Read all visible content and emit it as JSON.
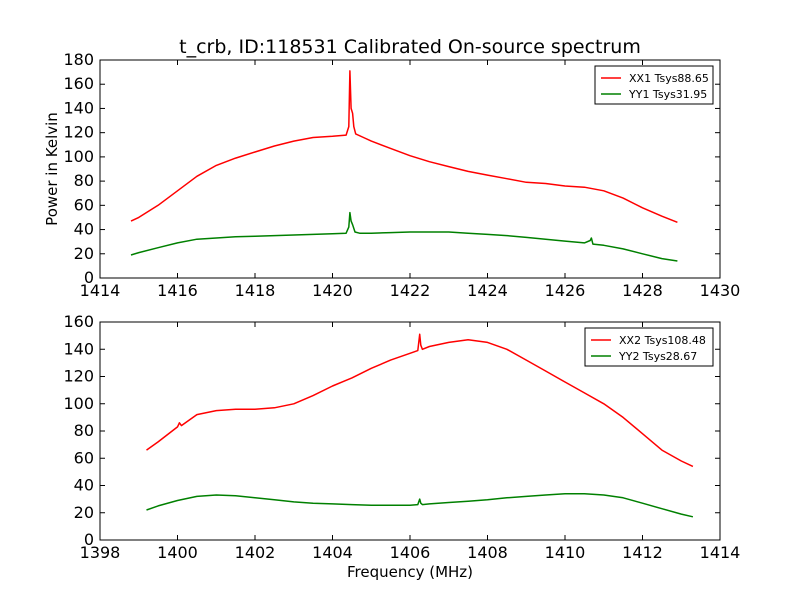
{
  "chart_data": [
    {
      "type": "line",
      "title": "t_crb, ID:118531 Calibrated On-source spectrum",
      "xlabel": "",
      "ylabel": "Power in Kelvin",
      "xlim": [
        1414,
        1430
      ],
      "ylim": [
        0,
        180
      ],
      "xticks": [
        1414,
        1416,
        1418,
        1420,
        1422,
        1424,
        1426,
        1428,
        1430
      ],
      "yticks": [
        0,
        20,
        40,
        60,
        80,
        100,
        120,
        140,
        160,
        180
      ],
      "legend_position": "upper right",
      "series": [
        {
          "name": "XX1 Tsys88.65",
          "color": "#ff0000",
          "x": [
            1414.8,
            1415.0,
            1415.5,
            1416.0,
            1416.5,
            1417.0,
            1417.5,
            1418.0,
            1418.5,
            1419.0,
            1419.5,
            1420.0,
            1420.35,
            1420.42,
            1420.45,
            1420.48,
            1420.52,
            1420.55,
            1420.6,
            1420.8,
            1421.0,
            1421.5,
            1422.0,
            1422.5,
            1423.0,
            1423.5,
            1424.0,
            1424.5,
            1425.0,
            1425.5,
            1426.0,
            1426.5,
            1427.0,
            1427.5,
            1428.0,
            1428.5,
            1428.9
          ],
          "y": [
            47,
            50,
            60,
            72,
            84,
            93,
            99,
            104,
            109,
            113,
            116,
            117,
            118,
            125,
            171,
            140,
            136,
            125,
            119,
            116,
            113,
            107,
            101,
            96,
            92,
            88,
            85,
            82,
            79,
            78,
            76,
            75,
            72,
            66,
            58,
            51,
            46
          ]
        },
        {
          "name": "YY1 Tsys31.95",
          "color": "#008000",
          "x": [
            1414.8,
            1415.0,
            1415.5,
            1416.0,
            1416.5,
            1417.0,
            1417.5,
            1418.0,
            1418.5,
            1419.0,
            1419.5,
            1420.0,
            1420.35,
            1420.42,
            1420.45,
            1420.48,
            1420.52,
            1420.58,
            1420.7,
            1421.0,
            1421.5,
            1422.0,
            1422.5,
            1423.0,
            1423.5,
            1424.0,
            1424.5,
            1425.0,
            1425.5,
            1426.0,
            1426.5,
            1426.65,
            1426.68,
            1426.72,
            1427.0,
            1427.5,
            1428.0,
            1428.5,
            1428.9
          ],
          "y": [
            19,
            21,
            25,
            29,
            32,
            33,
            34,
            34.5,
            35,
            35.5,
            36,
            36.5,
            37,
            42,
            54,
            47,
            44,
            38,
            37,
            37,
            37.5,
            38,
            38,
            38,
            37,
            36,
            35,
            33.5,
            32,
            30.5,
            29,
            31,
            33,
            28,
            27,
            24,
            20,
            16,
            14
          ]
        }
      ]
    },
    {
      "type": "line",
      "title": "",
      "xlabel": "Frequency (MHz)",
      "ylabel": "",
      "xlim": [
        1398,
        1414
      ],
      "ylim": [
        0,
        160
      ],
      "xticks": [
        1398,
        1400,
        1402,
        1404,
        1406,
        1408,
        1410,
        1412,
        1414
      ],
      "yticks": [
        0,
        20,
        40,
        60,
        80,
        100,
        120,
        140,
        160
      ],
      "legend_position": "upper right",
      "series": [
        {
          "name": "XX2 Tsys108.48",
          "color": "#ff0000",
          "x": [
            1399.2,
            1399.5,
            1400.0,
            1400.05,
            1400.1,
            1400.5,
            1401.0,
            1401.5,
            1402.0,
            1402.5,
            1403.0,
            1403.5,
            1404.0,
            1404.5,
            1405.0,
            1405.5,
            1406.0,
            1406.2,
            1406.25,
            1406.28,
            1406.32,
            1406.5,
            1407.0,
            1407.5,
            1408.0,
            1408.5,
            1409.0,
            1409.5,
            1410.0,
            1410.5,
            1411.0,
            1411.5,
            1412.0,
            1412.5,
            1413.0,
            1413.3
          ],
          "y": [
            66,
            72,
            83,
            86,
            84,
            92,
            95,
            96,
            96,
            97,
            100,
            106,
            113,
            119,
            126,
            132,
            137,
            139,
            151,
            143,
            140,
            142,
            145,
            147,
            145,
            140,
            132,
            124,
            116,
            108,
            100,
            90,
            78,
            66,
            58,
            54
          ]
        },
        {
          "name": "YY2 Tsys28.67",
          "color": "#008000",
          "x": [
            1399.2,
            1399.5,
            1400.0,
            1400.5,
            1401.0,
            1401.5,
            1402.0,
            1402.5,
            1403.0,
            1403.5,
            1404.0,
            1404.5,
            1405.0,
            1405.5,
            1406.0,
            1406.2,
            1406.25,
            1406.28,
            1406.32,
            1406.5,
            1407.0,
            1407.5,
            1408.0,
            1408.5,
            1409.0,
            1409.5,
            1410.0,
            1410.5,
            1411.0,
            1411.5,
            1412.0,
            1412.5,
            1413.0,
            1413.3
          ],
          "y": [
            22,
            25,
            29,
            32,
            33,
            32.5,
            31,
            29.5,
            28,
            27,
            26.5,
            26,
            25.5,
            25.5,
            25.5,
            26,
            30,
            27,
            26,
            26.5,
            27.5,
            28.5,
            29.5,
            31,
            32,
            33,
            34,
            34,
            33,
            31,
            27,
            23,
            19,
            17
          ]
        }
      ]
    }
  ]
}
